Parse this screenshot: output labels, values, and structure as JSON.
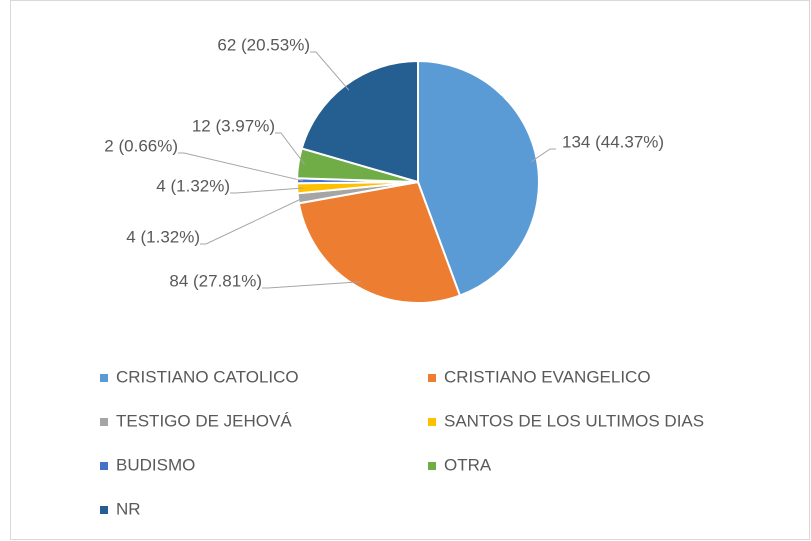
{
  "chart_data": {
    "type": "pie",
    "categories": [
      "CRISTIANO CATOLICO",
      "CRISTIANO EVANGELICO",
      "TESTIGO DE JEHOVÁ",
      "SANTOS DE LOS ULTIMOS DIAS",
      "BUDISMO",
      "OTRA",
      "NR"
    ],
    "values": [
      134,
      84,
      4,
      4,
      2,
      12,
      62
    ],
    "value_labels": [
      "134 (44.37%)",
      "84 (27.81%)",
      "4 (1.32%)",
      "4 (1.32%)",
      "2 (0.66%)",
      "12 (3.97%)",
      "62 (20.53%)"
    ],
    "colors": [
      "#5b9bd5",
      "#ed7d31",
      "#a5a5a5",
      "#ffc000",
      "#4472c4",
      "#70ad47",
      "#255e91"
    ],
    "legend": "bottom"
  }
}
